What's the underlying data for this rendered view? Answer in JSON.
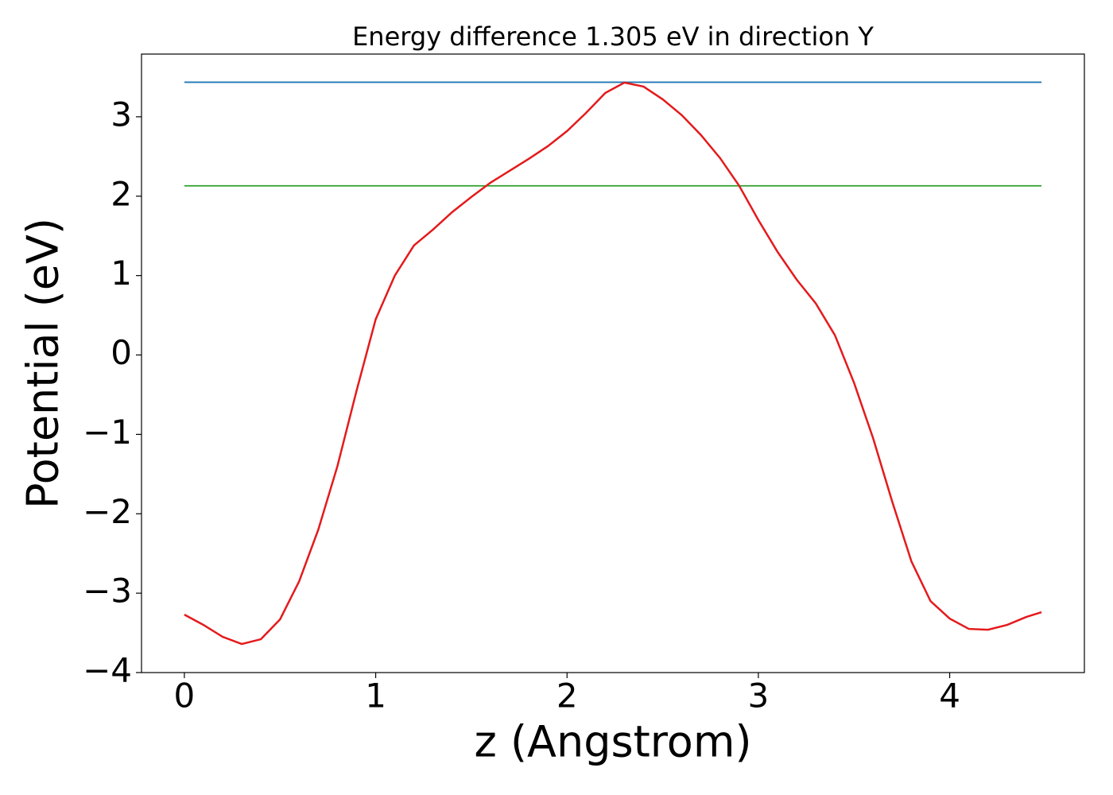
{
  "chart_data": {
    "type": "line",
    "title": "Energy difference 1.305 eV in direction Y",
    "xlabel": "z (Angstrom)",
    "ylabel": "Potential (eV)",
    "x": [
      0,
      0.1,
      0.2,
      0.3,
      0.4,
      0.5,
      0.6,
      0.7,
      0.8,
      0.9,
      1.0,
      1.1,
      1.2,
      1.3,
      1.4,
      1.5,
      1.6,
      1.7,
      1.8,
      1.9,
      2.0,
      2.1,
      2.2,
      2.3,
      2.4,
      2.5,
      2.6,
      2.7,
      2.8,
      2.9,
      3.0,
      3.1,
      3.2,
      3.3,
      3.4,
      3.5,
      3.6,
      3.7,
      3.8,
      3.9,
      4.0,
      4.1,
      4.2,
      4.3,
      4.4,
      4.48
    ],
    "series": [
      {
        "color": "#1f77b4",
        "values": [
          3.435,
          3.435,
          3.435,
          3.435,
          3.435,
          3.435,
          3.435,
          3.435,
          3.435,
          3.435,
          3.435,
          3.435,
          3.435,
          3.435,
          3.435,
          3.435,
          3.435,
          3.435,
          3.435,
          3.435,
          3.435,
          3.435,
          3.435,
          3.435,
          3.435,
          3.435,
          3.435,
          3.435,
          3.435,
          3.435,
          3.435,
          3.435,
          3.435,
          3.435,
          3.435,
          3.435,
          3.435,
          3.435,
          3.435,
          3.435,
          3.435,
          3.435,
          3.435,
          3.435,
          3.435,
          3.435
        ]
      },
      {
        "color": "#2ca02c",
        "values": [
          2.13,
          2.13,
          2.13,
          2.13,
          2.13,
          2.13,
          2.13,
          2.13,
          2.13,
          2.13,
          2.13,
          2.13,
          2.13,
          2.13,
          2.13,
          2.13,
          2.13,
          2.13,
          2.13,
          2.13,
          2.13,
          2.13,
          2.13,
          2.13,
          2.13,
          2.13,
          2.13,
          2.13,
          2.13,
          2.13,
          2.13,
          2.13,
          2.13,
          2.13,
          2.13,
          2.13,
          2.13,
          2.13,
          2.13,
          2.13,
          2.13,
          2.13,
          2.13,
          2.13,
          2.13,
          2.13
        ]
      },
      {
        "color": "#e41a1c",
        "values": [
          -3.27,
          -3.4,
          -3.55,
          -3.64,
          -3.58,
          -3.33,
          -2.85,
          -2.2,
          -1.4,
          -0.45,
          0.45,
          1.0,
          1.38,
          1.58,
          1.8,
          1.99,
          2.17,
          2.32,
          2.47,
          2.63,
          2.82,
          3.05,
          3.3,
          3.43,
          3.38,
          3.22,
          3.02,
          2.77,
          2.48,
          2.13,
          1.7,
          1.3,
          0.95,
          0.65,
          0.25,
          -0.35,
          -1.05,
          -1.85,
          -2.6,
          -3.1,
          -3.32,
          -3.45,
          -3.46,
          -3.4,
          -3.3,
          -3.24
        ]
      }
    ],
    "xlim": [
      -0.224,
      4.704
    ],
    "ylim": [
      -4.0,
      3.79
    ],
    "xticks": [
      0,
      1,
      2,
      3,
      4
    ],
    "yticks": [
      {
        "value": -4,
        "label": "−4"
      },
      {
        "value": -3,
        "label": "−3"
      },
      {
        "value": -2,
        "label": "−2"
      },
      {
        "value": -1,
        "label": "−1"
      },
      0,
      1,
      2,
      3
    ]
  }
}
